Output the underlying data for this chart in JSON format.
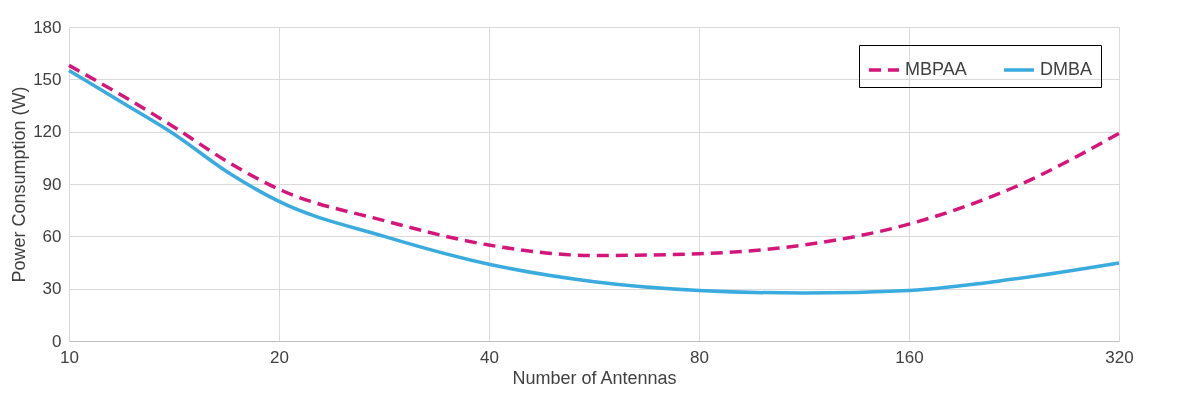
{
  "chart_data": {
    "type": "line",
    "xlabel": "Number of Antennas",
    "ylabel": "Power Consumption (W)",
    "log": "x",
    "xlim": [
      10,
      320
    ],
    "xticks": [
      10,
      20,
      40,
      80,
      160,
      320
    ],
    "ylim": [
      0,
      180
    ],
    "yticks": [
      0,
      30,
      60,
      90,
      120,
      150,
      180
    ],
    "grid": true,
    "legend": "top right",
    "series": [
      {
        "name": "MBPAA",
        "color": "#d6157a",
        "line_style": "dashed",
        "x": [
          10,
          12,
          14.1,
          17,
          20,
          28.3,
          40,
          56.6,
          80,
          113,
          160,
          226,
          320
        ],
        "values": [
          158,
          140,
          123,
          102,
          87,
          69,
          55,
          49,
          50,
          55,
          67,
          88,
          119
        ]
      },
      {
        "name": "DMBA",
        "color": "#3aabdf",
        "line_style": "solid",
        "x": [
          10,
          12,
          14.1,
          17,
          20,
          28.3,
          40,
          56.6,
          80,
          113,
          160,
          226,
          320
        ],
        "values": [
          155,
          136,
          119,
          96,
          80,
          60,
          44,
          34,
          29,
          27.5,
          29,
          35.5,
          44.7
        ]
      }
    ]
  }
}
